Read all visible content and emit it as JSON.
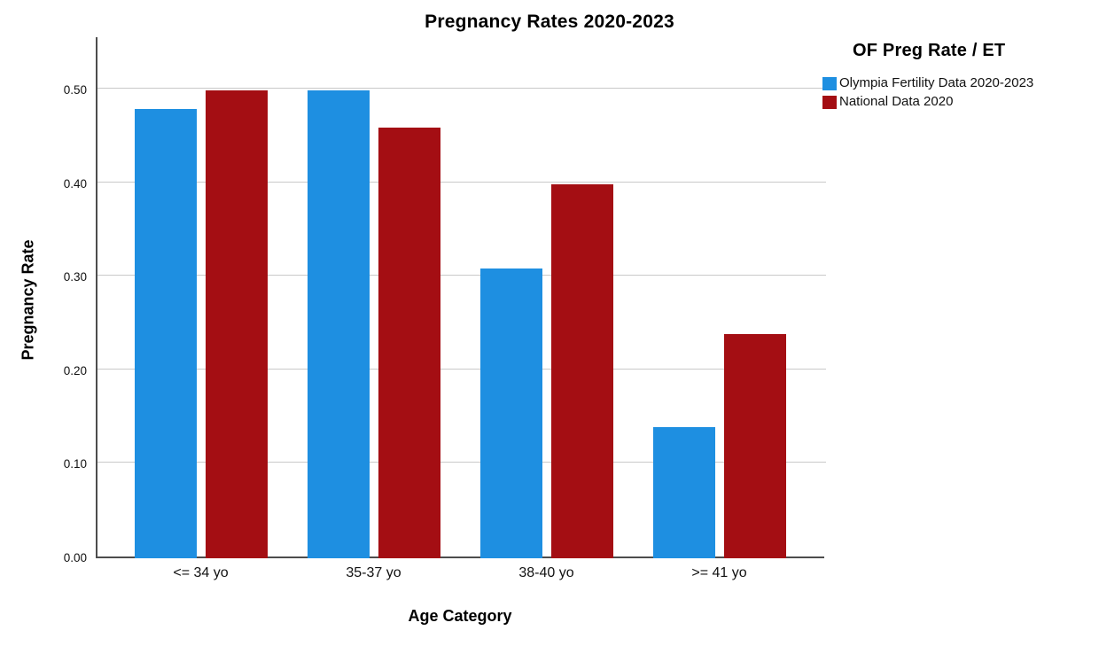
{
  "chart_data": {
    "type": "bar",
    "title": "Pregnancy Rates 2020-2023",
    "xlabel": "Age Category",
    "ylabel": "Pregnancy Rate",
    "legend_title": "OF Preg Rate / ET",
    "legend_position": "right",
    "grid": "horizontal-only",
    "categories": [
      "<= 34 yo",
      "35-37 yo",
      "38-40 yo",
      ">= 41 yo"
    ],
    "series": [
      {
        "name": "Olympia Fertility Data 2020-2023",
        "color": "#1e8fe1",
        "values": [
          0.48,
          0.5,
          0.31,
          0.14
        ]
      },
      {
        "name": "National Data 2020",
        "color": "#a40e13",
        "values": [
          0.5,
          0.46,
          0.4,
          0.24
        ]
      }
    ],
    "y_ticks": [
      "0.00",
      "0.10",
      "0.20",
      "0.30",
      "0.40",
      "0.50"
    ],
    "ylim": [
      0,
      0.557
    ],
    "colors": {
      "gridline": "#c9c9c9",
      "axis": "#4d4d4d",
      "text": "#000000"
    }
  }
}
